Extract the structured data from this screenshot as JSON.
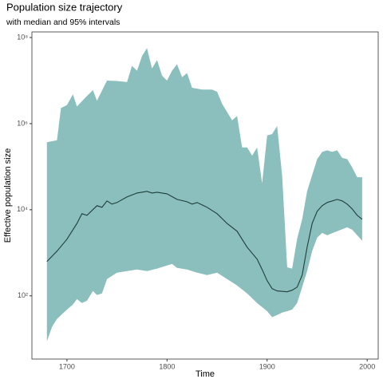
{
  "chart_data": {
    "type": "band-line",
    "title": "Population size trajectory",
    "subtitle": "with median and 95% intervals",
    "x_label": "Time",
    "y_label": "Effective population size",
    "xlim": [
      1665,
      2011
    ],
    "xticks": [
      1700,
      1800,
      1900,
      2000
    ],
    "ylim": [
      3.4,
      135000000
    ],
    "log_y": true,
    "yticks": [
      {
        "value": 100,
        "label": "10²"
      },
      {
        "value": 10000,
        "label": "10⁴"
      },
      {
        "value": 1000000,
        "label": "10⁶"
      },
      {
        "value": 100000000,
        "label": "10⁸"
      }
    ],
    "band_color": "#8bbfbd",
    "line_color": "#1f3d3a",
    "upper": {
      "x": [
        1680,
        1690,
        1694,
        1700,
        1706,
        1710,
        1720,
        1726,
        1730,
        1740,
        1750,
        1760,
        1765,
        1770,
        1775,
        1780,
        1785,
        1790,
        1795,
        1800,
        1805,
        1810,
        1815,
        1820,
        1825,
        1835,
        1845,
        1850,
        1855,
        1865,
        1870,
        1875,
        1880,
        1885,
        1890,
        1895,
        1900,
        1905,
        1910,
        1915,
        1920,
        1925,
        1930,
        1935,
        1940,
        1950,
        1955,
        1960,
        1965,
        1970,
        1975,
        1980,
        1985,
        1990,
        1995
      ],
      "values": [
        370000,
        410000,
        2300000,
        2700000,
        4800000,
        2500000,
        4400000,
        6000000,
        3400000,
        10000000,
        9800000,
        9200000,
        22000000,
        17000000,
        37000000,
        57000000,
        19000000,
        30000000,
        13000000,
        10000000,
        17000000,
        24000000,
        12000000,
        15000000,
        6800000,
        6200000,
        6200000,
        5500000,
        2900000,
        1200000,
        1500000,
        280000,
        280000,
        180000,
        280000,
        41000,
        530000,
        570000,
        880000,
        62000,
        460,
        430,
        2100,
        6000,
        27000,
        150000,
        220000,
        240000,
        220000,
        240000,
        160000,
        150000,
        96000,
        57000,
        57000
      ]
    },
    "lower": {
      "x": [
        1680,
        1685,
        1690,
        1700,
        1706,
        1710,
        1715,
        1720,
        1726,
        1730,
        1735,
        1740,
        1750,
        1760,
        1770,
        1780,
        1790,
        1800,
        1805,
        1810,
        1820,
        1830,
        1840,
        1850,
        1860,
        1870,
        1880,
        1890,
        1900,
        1905,
        1910,
        1915,
        1920,
        1925,
        1930,
        1935,
        1940,
        1945,
        1950,
        1955,
        1960,
        1970,
        1980,
        1985,
        1990,
        1995
      ],
      "values": [
        8.8,
        19,
        29,
        48,
        63,
        84,
        68,
        77,
        130,
        104,
        114,
        245,
        345,
        375,
        410,
        375,
        430,
        505,
        550,
        445,
        410,
        345,
        303,
        345,
        245,
        174,
        114,
        68,
        44,
        32,
        36,
        41,
        44,
        48,
        68,
        160,
        375,
        1090,
        2250,
        2900,
        2550,
        3160,
        3900,
        3440,
        2550,
        1900
      ]
    },
    "median": {
      "x": [
        1680,
        1690,
        1700,
        1710,
        1715,
        1720,
        1730,
        1735,
        1740,
        1745,
        1750,
        1760,
        1770,
        1780,
        1785,
        1790,
        1800,
        1810,
        1820,
        1825,
        1830,
        1840,
        1850,
        1860,
        1870,
        1880,
        1890,
        1895,
        1900,
        1905,
        1910,
        1920,
        1925,
        1930,
        1935,
        1940,
        1945,
        1950,
        1955,
        1960,
        1970,
        1975,
        1980,
        1985,
        1990,
        1995
      ],
      "values": [
        625,
        1090,
        2070,
        4800,
        8100,
        7400,
        12400,
        11400,
        16000,
        13500,
        14700,
        19800,
        24500,
        26700,
        24500,
        25500,
        23400,
        17400,
        15300,
        13500,
        14700,
        11400,
        8100,
        4800,
        3160,
        1350,
        710,
        410,
        225,
        147,
        130,
        124,
        135,
        160,
        303,
        1350,
        4800,
        9200,
        12400,
        14700,
        17400,
        16000,
        13500,
        10400,
        7400,
        6000
      ]
    }
  }
}
